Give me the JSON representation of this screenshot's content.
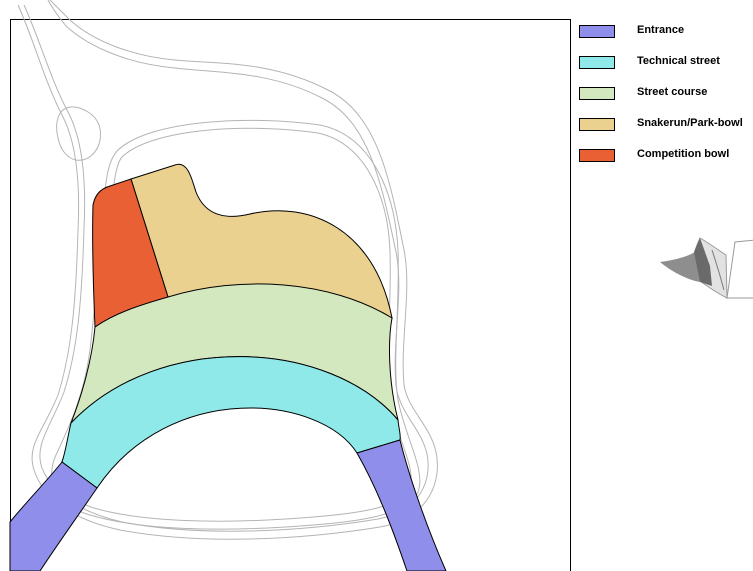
{
  "legend": {
    "items": [
      {
        "label": "Entrance",
        "color": "#8f8eea"
      },
      {
        "label": "Technical street",
        "color": "#8fe9e9"
      },
      {
        "label": "Street course",
        "color": "#d4e8c0"
      },
      {
        "label": "Snakerun/Park-bowl",
        "color": "#ead18f"
      },
      {
        "label": "Competition bowl",
        "color": "#ea6035"
      }
    ]
  },
  "colors": {
    "outline": "#000000",
    "path_outline": "#b4b4b4",
    "background": "#ffffff"
  },
  "thumbnail": {
    "icon": "site-location-thumbnail-icon"
  }
}
